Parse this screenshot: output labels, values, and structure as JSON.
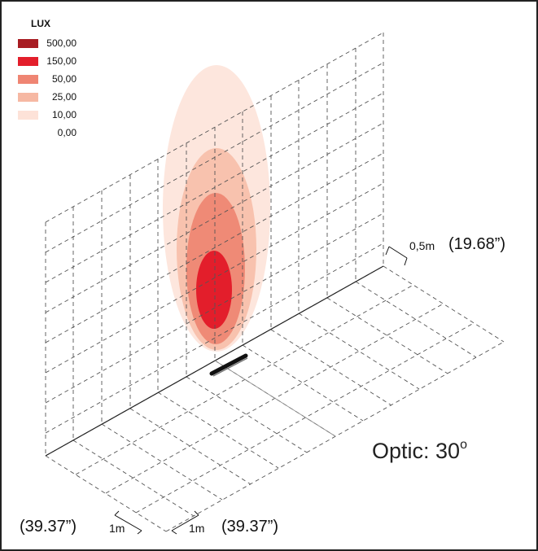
{
  "legend": {
    "title": "LUX",
    "items": [
      {
        "label": "500,00",
        "color": "#a81c22"
      },
      {
        "label": "150,00",
        "color": "#e31e2b"
      },
      {
        "label": "50,00",
        "color": "#ef8573"
      },
      {
        "label": "25,00",
        "color": "#f6b8a3"
      },
      {
        "label": "10,00",
        "color": "#fde2d8"
      },
      {
        "label": "0,00",
        "color": "#ffffff"
      }
    ]
  },
  "dimensions": {
    "height_m": "0,5m",
    "height_in": "(19.68”)",
    "left_in": "(39.37”)",
    "left_m": "1m",
    "right_m": "1m",
    "right_in": "(39.37”)"
  },
  "optic": {
    "text": "Optic: 30",
    "degree": "o"
  }
}
